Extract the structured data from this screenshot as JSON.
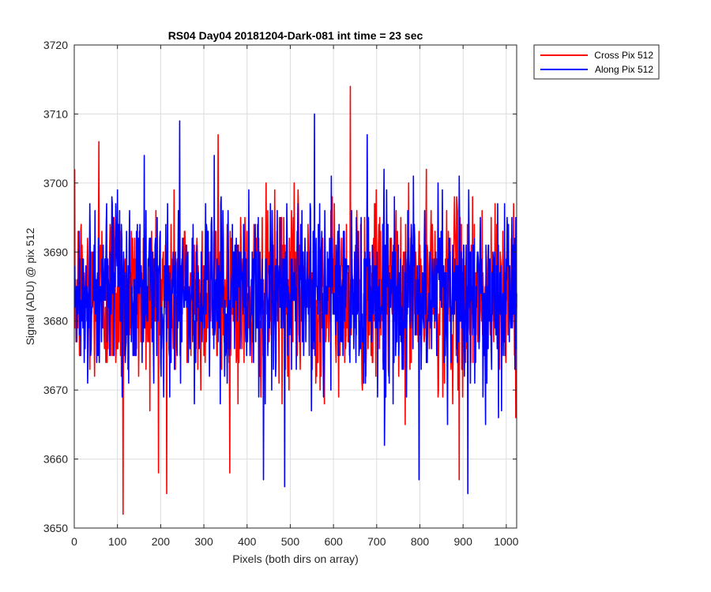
{
  "chart_data": {
    "type": "line",
    "title": "RS04 Day04 20181204-Dark-081 int time = 23 sec",
    "xlabel": "Pixels (both dirs on array)",
    "ylabel": "Signal (ADU) @ pix 512",
    "xlim": [
      0,
      1024
    ],
    "ylim": [
      3650,
      3720
    ],
    "xticks": [
      0,
      100,
      200,
      300,
      400,
      500,
      600,
      700,
      800,
      900,
      1000
    ],
    "yticks": [
      3650,
      3660,
      3670,
      3680,
      3690,
      3700,
      3710,
      3720
    ],
    "grid": true,
    "legend_position": "outside-top-right",
    "noise_model": {
      "mean": 3684,
      "std": 6.5,
      "n_points": 1024,
      "note_values_are_estimated_noise": true
    },
    "series": [
      {
        "name": "Cross Pix 512",
        "color": "#ff0000",
        "seed": 12345,
        "highlights": [
          {
            "x": 112,
            "y": 3652
          },
          {
            "x": 213,
            "y": 3655
          },
          {
            "x": 638,
            "y": 3714
          },
          {
            "x": 56,
            "y": 3706
          },
          {
            "x": 332,
            "y": 3707
          },
          {
            "x": 890,
            "y": 3657
          }
        ]
      },
      {
        "name": "Along Pix 512",
        "color": "#0000ff",
        "seed": 67890,
        "highlights": [
          {
            "x": 243,
            "y": 3709
          },
          {
            "x": 555,
            "y": 3710
          },
          {
            "x": 437,
            "y": 3657
          },
          {
            "x": 486,
            "y": 3656
          },
          {
            "x": 797,
            "y": 3657
          },
          {
            "x": 910,
            "y": 3655
          }
        ]
      }
    ]
  }
}
